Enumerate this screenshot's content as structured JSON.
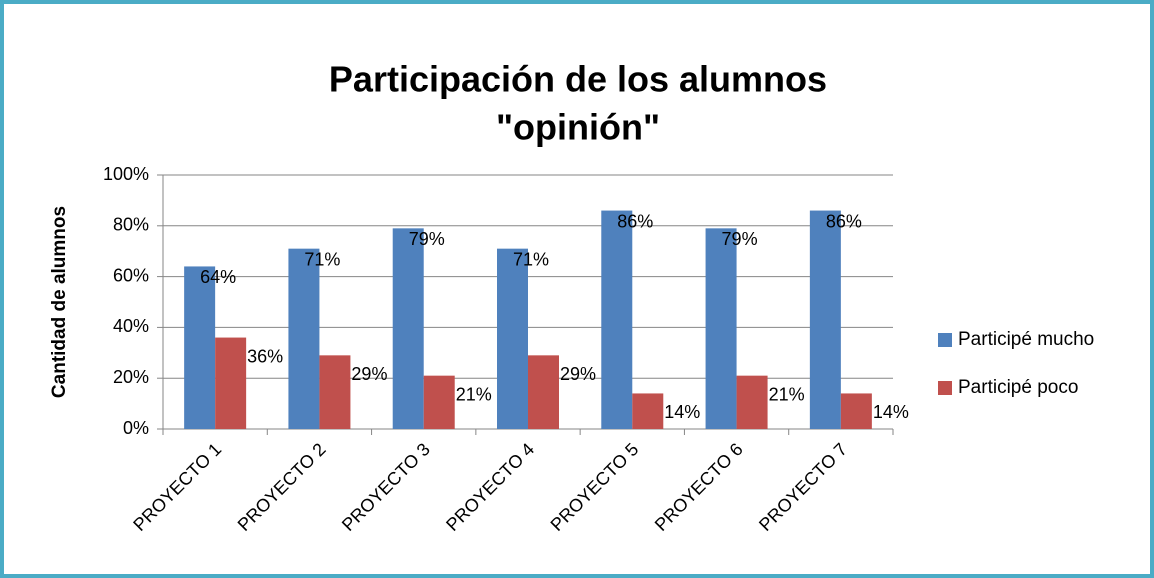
{
  "chart_data": {
    "type": "bar",
    "title": [
      "Participación de los alumnos",
      "\"opinión\""
    ],
    "y_label": "Cantidad de alumnos",
    "categories": [
      "PROYECTO 1",
      "PROYECTO 2",
      "PROYECTO 3",
      "PROYECTO 4",
      "PROYECTO 5",
      "PROYECTO 6",
      "PROYECTO 7"
    ],
    "series": [
      {
        "name": "Participé mucho",
        "color": "#4f81bd",
        "values": [
          64,
          71,
          79,
          71,
          86,
          79,
          86
        ],
        "value_labels": [
          "64%",
          "71%",
          "79%",
          "71%",
          "86%",
          "79%",
          "86%"
        ]
      },
      {
        "name": "Participé poco",
        "color": "#c0504d",
        "values": [
          36,
          29,
          21,
          29,
          14,
          21,
          14
        ],
        "value_labels": [
          "36%",
          "29%",
          "21%",
          "29%",
          "14%",
          "21%",
          "14%"
        ]
      }
    ],
    "ylim": [
      0,
      100
    ],
    "yticks": [
      {
        "value": 0,
        "label": "0%"
      },
      {
        "value": 20,
        "label": "20%"
      },
      {
        "value": 40,
        "label": "40%"
      },
      {
        "value": 60,
        "label": "60%"
      },
      {
        "value": 80,
        "label": "80%"
      },
      {
        "value": 100,
        "label": "100%"
      }
    ],
    "grid": true,
    "legend": "right"
  }
}
